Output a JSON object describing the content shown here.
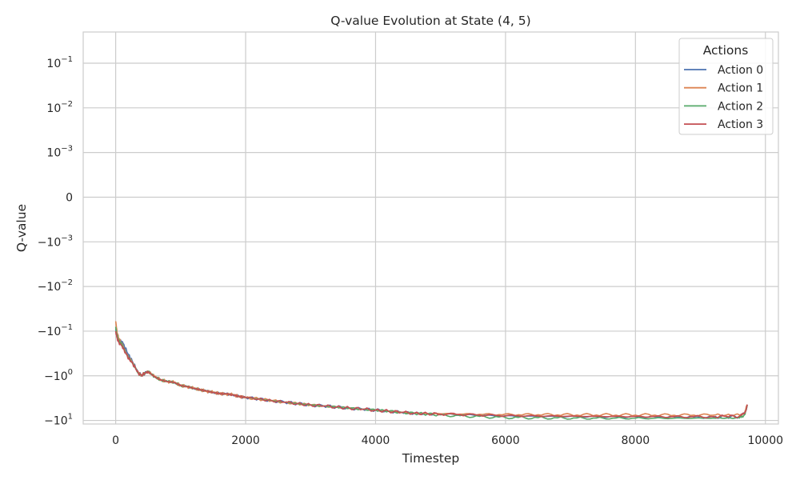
{
  "chart_data": {
    "type": "line",
    "title": "Q-value Evolution at State (4, 5)",
    "xlabel": "Timestep",
    "ylabel": "Q-value",
    "xlim": [
      -500,
      10200
    ],
    "ylim": [
      -12,
      0.5
    ],
    "yscale": "symlog",
    "linthresh": 0.001,
    "grid": true,
    "legend_title": "Actions",
    "legend_position": "top-right",
    "x_ticks": [
      {
        "value": 0,
        "label": "0"
      },
      {
        "value": 2000,
        "label": "2000"
      },
      {
        "value": 4000,
        "label": "4000"
      },
      {
        "value": 6000,
        "label": "6000"
      },
      {
        "value": 8000,
        "label": "8000"
      },
      {
        "value": 10000,
        "label": "10000"
      }
    ],
    "y_ticks": [
      {
        "value": 0.1,
        "base": "10",
        "exp": "−1"
      },
      {
        "value": 0.01,
        "base": "10",
        "exp": "−2"
      },
      {
        "value": 0.001,
        "base": "10",
        "exp": "−3"
      },
      {
        "value": 0,
        "base": "0",
        "exp": ""
      },
      {
        "value": -0.001,
        "base": "−10",
        "exp": "−3"
      },
      {
        "value": -0.01,
        "base": "−10",
        "exp": "−2"
      },
      {
        "value": -0.1,
        "base": "−10",
        "exp": "−1"
      },
      {
        "value": -1,
        "base": "−10",
        "exp": "0"
      },
      {
        "value": -10,
        "base": "−10",
        "exp": "1"
      }
    ],
    "x": [
      0,
      25,
      50,
      100,
      150,
      200,
      250,
      300,
      350,
      400,
      450,
      500,
      600,
      700,
      800,
      900,
      1000,
      1100,
      1200,
      1300,
      1400,
      1500,
      1600,
      1700,
      1800,
      1900,
      2000,
      2200,
      2400,
      2600,
      2800,
      3000,
      3200,
      3400,
      3600,
      3800,
      4000,
      4200,
      4400,
      4600,
      4800,
      5000,
      5300,
      5600,
      5900,
      6200,
      6500,
      6800,
      7100,
      7400,
      7700,
      8000,
      8300,
      8600,
      8900,
      9200,
      9400,
      9600,
      9680,
      9720
    ],
    "series": [
      {
        "name": "Action 0",
        "color": "#4c72b0",
        "values": [
          -0.09,
          -0.14,
          -0.17,
          -0.17,
          -0.24,
          -0.34,
          -0.45,
          -0.62,
          -0.86,
          -0.98,
          -0.88,
          -0.8,
          -1.05,
          -1.25,
          -1.35,
          -1.4,
          -1.65,
          -1.75,
          -1.9,
          -2.05,
          -2.2,
          -2.35,
          -2.5,
          -2.55,
          -2.65,
          -2.9,
          -3.05,
          -3.3,
          -3.6,
          -3.9,
          -4.2,
          -4.5,
          -4.75,
          -5.0,
          -5.3,
          -5.6,
          -5.85,
          -6.2,
          -6.6,
          -6.9,
          -7.1,
          -7.3,
          -7.5,
          -7.7,
          -7.9,
          -8.0,
          -8.05,
          -8.1,
          -8.15,
          -8.2,
          -8.25,
          -8.25,
          -8.3,
          -8.35,
          -8.35,
          -8.35,
          -8.3,
          -8.25,
          -7.0,
          -4.5
        ]
      },
      {
        "name": "Action 1",
        "color": "#dd8452",
        "values": [
          -0.06,
          -0.11,
          -0.15,
          -0.19,
          -0.28,
          -0.38,
          -0.48,
          -0.65,
          -0.88,
          -0.98,
          -0.86,
          -0.79,
          -1.04,
          -1.24,
          -1.34,
          -1.4,
          -1.64,
          -1.74,
          -1.9,
          -2.05,
          -2.2,
          -2.35,
          -2.5,
          -2.55,
          -2.65,
          -2.9,
          -3.05,
          -3.3,
          -3.6,
          -3.9,
          -4.2,
          -4.5,
          -4.75,
          -5.0,
          -5.3,
          -5.6,
          -5.85,
          -6.2,
          -6.55,
          -6.8,
          -7.0,
          -7.1,
          -7.2,
          -7.3,
          -7.4,
          -7.45,
          -7.45,
          -7.5,
          -7.55,
          -7.55,
          -7.6,
          -7.6,
          -7.6,
          -7.65,
          -7.6,
          -7.6,
          -7.55,
          -7.5,
          -6.8,
          -4.4
        ]
      },
      {
        "name": "Action 2",
        "color": "#55a868",
        "values": [
          -0.08,
          -0.13,
          -0.16,
          -0.2,
          -0.3,
          -0.4,
          -0.5,
          -0.64,
          -0.88,
          -0.98,
          -0.87,
          -0.8,
          -1.05,
          -1.25,
          -1.35,
          -1.4,
          -1.65,
          -1.75,
          -1.9,
          -2.05,
          -2.2,
          -2.35,
          -2.5,
          -2.55,
          -2.65,
          -2.9,
          -3.05,
          -3.3,
          -3.6,
          -3.9,
          -4.2,
          -4.5,
          -4.75,
          -5.0,
          -5.3,
          -5.6,
          -5.85,
          -6.2,
          -6.6,
          -6.95,
          -7.2,
          -7.5,
          -7.8,
          -8.1,
          -8.4,
          -8.55,
          -8.65,
          -8.75,
          -8.8,
          -8.85,
          -8.85,
          -8.9,
          -8.9,
          -8.9,
          -8.9,
          -8.85,
          -8.85,
          -8.8,
          -7.4,
          -4.6
        ]
      },
      {
        "name": "Action 3",
        "color": "#c44e52",
        "values": [
          -0.1,
          -0.15,
          -0.18,
          -0.22,
          -0.3,
          -0.41,
          -0.5,
          -0.65,
          -0.88,
          -0.98,
          -0.87,
          -0.8,
          -1.05,
          -1.25,
          -1.35,
          -1.4,
          -1.65,
          -1.75,
          -1.9,
          -2.05,
          -2.2,
          -2.35,
          -2.5,
          -2.55,
          -2.65,
          -2.9,
          -3.05,
          -3.3,
          -3.6,
          -3.9,
          -4.2,
          -4.5,
          -4.75,
          -5.0,
          -5.3,
          -5.6,
          -5.85,
          -6.2,
          -6.6,
          -6.85,
          -7.05,
          -7.2,
          -7.4,
          -7.6,
          -7.8,
          -7.9,
          -7.95,
          -8.0,
          -8.05,
          -8.1,
          -8.1,
          -8.15,
          -8.15,
          -8.2,
          -8.2,
          -8.15,
          -8.1,
          -8.05,
          -6.9,
          -4.4
        ]
      }
    ]
  }
}
